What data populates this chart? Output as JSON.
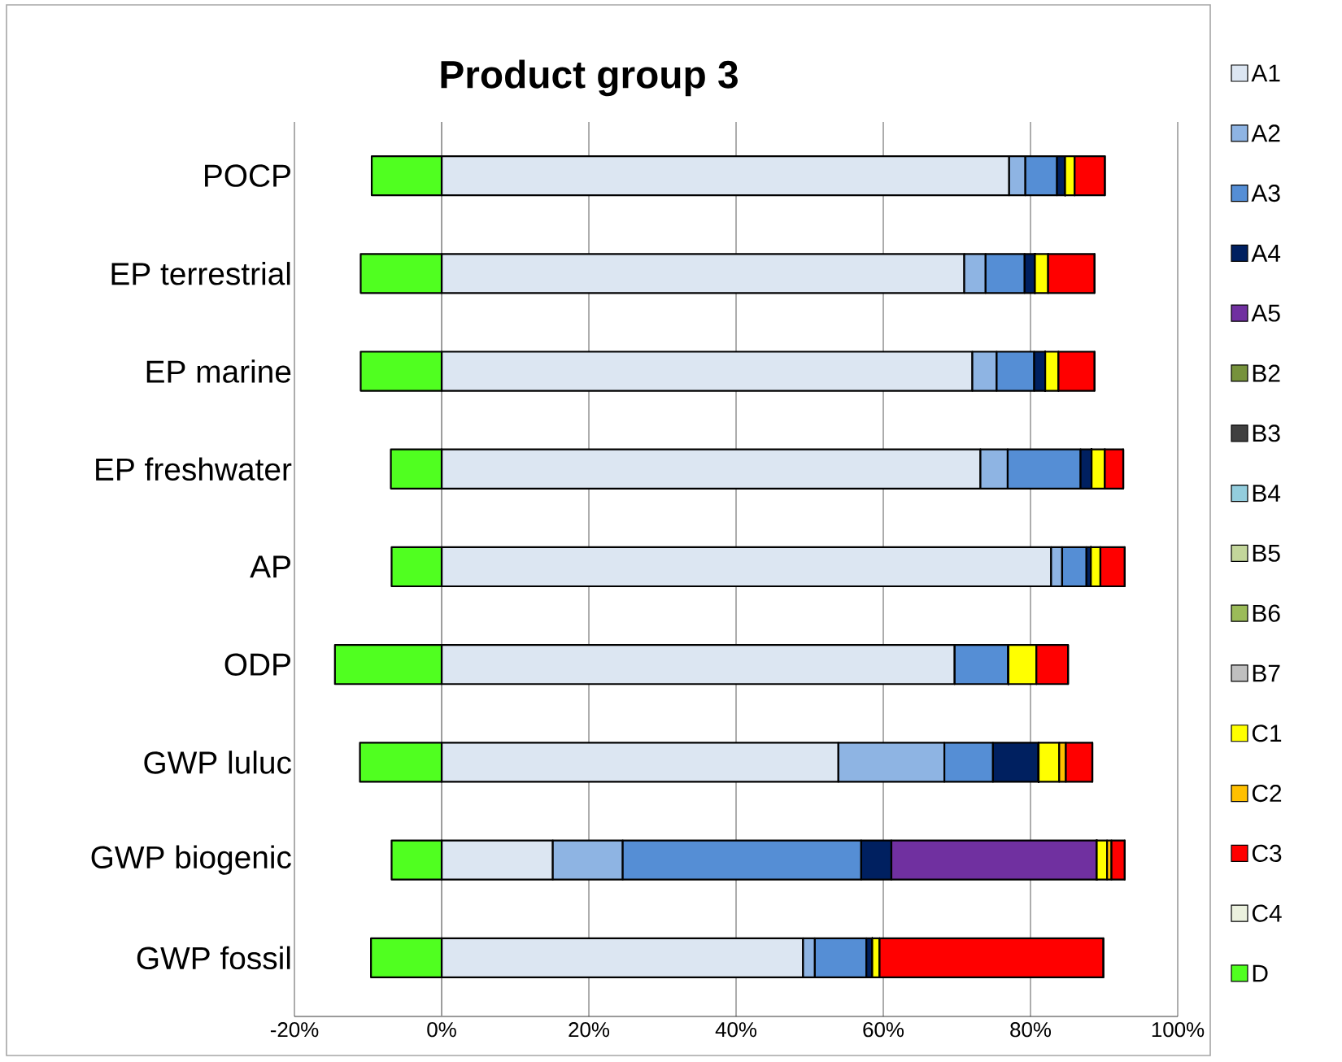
{
  "chart_data": {
    "type": "bar",
    "orientation": "horizontal",
    "stacked": true,
    "title": "Product group 3",
    "categories": [
      "POCP",
      "EP terrestrial",
      "EP marine",
      "EP freshwater",
      "AP",
      "ODP",
      "GWP luluc",
      "GWP biogenic",
      "GWP fossil"
    ],
    "series": [
      {
        "name": "A1",
        "color": "#dce6f2",
        "values": [
          77.1,
          71.0,
          72.1,
          73.2,
          82.8,
          69.7,
          53.9,
          15.1,
          49.1
        ]
      },
      {
        "name": "A2",
        "color": "#8eb4e3",
        "values": [
          2.2,
          2.9,
          3.3,
          3.7,
          1.5,
          0,
          14.4,
          9.5,
          1.6
        ]
      },
      {
        "name": "A3",
        "color": "#558ed5",
        "values": [
          4.3,
          5.3,
          5.1,
          9.9,
          3.3,
          7.3,
          6.6,
          32.4,
          7.0
        ]
      },
      {
        "name": "A4",
        "color": "#002060",
        "values": [
          1.1,
          1.4,
          1.5,
          1.5,
          0.6,
          0,
          6.2,
          4.1,
          0.8
        ]
      },
      {
        "name": "A5",
        "color": "#7030a0",
        "values": [
          0,
          0,
          0,
          0,
          0,
          0,
          0,
          27.9,
          0
        ]
      },
      {
        "name": "B2",
        "color": "#76923c",
        "values": [
          0,
          0,
          0,
          0,
          0,
          0,
          0,
          0,
          0
        ]
      },
      {
        "name": "B3",
        "color": "#404040",
        "values": [
          0,
          0,
          0,
          0,
          0,
          0,
          0,
          0,
          0
        ]
      },
      {
        "name": "B4",
        "color": "#93cddd",
        "values": [
          0,
          0,
          0,
          0,
          0,
          0,
          0,
          0,
          0
        ]
      },
      {
        "name": "B5",
        "color": "#c3d69b",
        "values": [
          0,
          0,
          0,
          0,
          0,
          0,
          0,
          0,
          0
        ]
      },
      {
        "name": "B6",
        "color": "#9bbb59",
        "values": [
          0,
          0,
          0,
          0,
          0,
          0,
          0,
          0,
          0
        ]
      },
      {
        "name": "B7",
        "color": "#bfbfbf",
        "values": [
          0,
          0,
          0,
          0,
          0,
          0,
          0,
          0,
          0
        ]
      },
      {
        "name": "C1",
        "color": "#ffff00",
        "values": [
          1.3,
          1.8,
          1.8,
          1.8,
          1.3,
          3.8,
          2.8,
          1.4,
          1.0
        ]
      },
      {
        "name": "C2",
        "color": "#ffc000",
        "values": [
          0,
          0,
          0,
          0,
          0,
          0,
          0.9,
          0.6,
          0
        ]
      },
      {
        "name": "C3",
        "color": "#ff0000",
        "values": [
          4.1,
          6.3,
          4.9,
          2.5,
          3.3,
          4.3,
          3.6,
          1.8,
          30.4
        ]
      },
      {
        "name": "C4",
        "color": "#ebf1de",
        "values": [
          0,
          0,
          0,
          0,
          0,
          0,
          0,
          0,
          0
        ]
      },
      {
        "name": "D",
        "color": "#50ff20",
        "values": [
          -9.5,
          -11.0,
          -11.0,
          -6.9,
          -6.8,
          -14.5,
          -11.1,
          -6.8,
          -9.6
        ]
      }
    ],
    "xlim": [
      -20,
      100
    ],
    "xticks": [
      {
        "value": -20,
        "label": "-20%"
      },
      {
        "value": 0,
        "label": "0%"
      },
      {
        "value": 20,
        "label": "20%"
      },
      {
        "value": 40,
        "label": "40%"
      },
      {
        "value": 60,
        "label": "60%"
      },
      {
        "value": 80,
        "label": "80%"
      },
      {
        "value": 100,
        "label": "100%"
      }
    ],
    "grid": "x",
    "legend": "right"
  }
}
